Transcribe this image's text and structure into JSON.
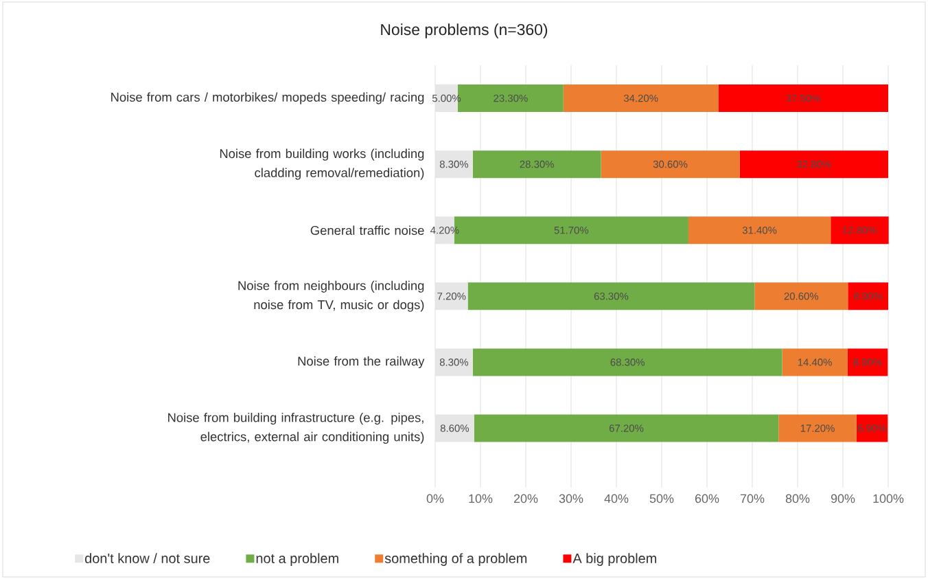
{
  "chart_data": {
    "type": "bar",
    "orientation": "horizontal",
    "stacked": true,
    "title": "Noise problems (n=360)",
    "categories": [
      "Noise from cars / motorbikes/ mopeds speeding/ racing",
      "Noise from building works (including cladding removal/remediation)",
      "General traffic noise",
      "Noise from neighbours (including noise from  TV, music or dogs)",
      "Noise from the railway",
      "Noise from building infrastructure (e.g. pipes, electrics, external air conditioning units)"
    ],
    "series": [
      {
        "name": "don't know / not sure",
        "color": "#e7e6e6",
        "values": [
          5.0,
          8.3,
          4.2,
          7.2,
          8.3,
          8.6
        ],
        "value_labels": [
          "5.00%",
          "8.30%",
          "4.20%",
          "7.20%",
          "8.30%",
          "8.60%"
        ]
      },
      {
        "name": "not a problem",
        "color": "#70ad47",
        "values": [
          23.3,
          28.3,
          51.7,
          63.3,
          68.3,
          67.2
        ],
        "value_labels": [
          "23.30%",
          "28.30%",
          "51.70%",
          "63.30%",
          "68.30%",
          "67.20%"
        ]
      },
      {
        "name": "something of a problem",
        "color": "#ed7d31",
        "values": [
          34.2,
          30.6,
          31.4,
          20.6,
          14.4,
          17.2
        ],
        "value_labels": [
          "34.20%",
          "30.60%",
          "31.40%",
          "20.60%",
          "14.40%",
          "17.20%"
        ]
      },
      {
        "name": "A big problem",
        "color": "#ff0000",
        "values": [
          37.5,
          32.8,
          12.8,
          8.9,
          8.9,
          6.9
        ],
        "value_labels": [
          "37.50%",
          "32.80%",
          "12.80%",
          "8.90%",
          "8.90%",
          "6.90%"
        ]
      }
    ],
    "xlim": [
      0,
      100
    ],
    "xticks": [
      {
        "value": 0,
        "label": "0%"
      },
      {
        "value": 10,
        "label": "10%"
      },
      {
        "value": 20,
        "label": "20%"
      },
      {
        "value": 30,
        "label": "30%"
      },
      {
        "value": 40,
        "label": "40%"
      },
      {
        "value": 50,
        "label": "50%"
      },
      {
        "value": 60,
        "label": "60%"
      },
      {
        "value": 70,
        "label": "70%"
      },
      {
        "value": 80,
        "label": "80%"
      },
      {
        "value": 90,
        "label": "90%"
      },
      {
        "value": 100,
        "label": "100%"
      }
    ],
    "grid": "x",
    "legend": "bottom"
  }
}
